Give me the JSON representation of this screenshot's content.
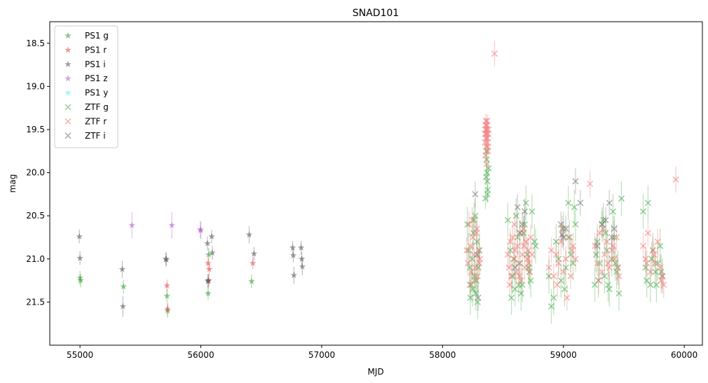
{
  "chart_data": {
    "type": "scatter",
    "title": "SNAD101",
    "xlabel": "MJD",
    "ylabel": "mag",
    "xlim": [
      54750,
      60150
    ],
    "ylim": [
      22.0,
      18.25
    ],
    "y_inverted": true,
    "xticks": [
      55000,
      56000,
      57000,
      58000,
      59000,
      60000
    ],
    "yticks": [
      18.5,
      19.0,
      19.5,
      20.0,
      20.5,
      21.0,
      21.5
    ],
    "ytick_labels": [
      "18.5",
      "19.0",
      "19.5",
      "20.0",
      "20.5",
      "21.0",
      "21.5"
    ],
    "grid": false,
    "legend_position": "upper-left",
    "series": [
      {
        "name": "PS1 g",
        "marker": "star",
        "color": "#2ca02c",
        "x": [
          55000,
          55005,
          55360,
          55720,
          55725,
          56060,
          56065,
          56420
        ],
        "y": [
          21.22,
          21.25,
          21.32,
          21.43,
          21.6,
          21.4,
          20.95,
          21.26
        ],
        "err": [
          0.08,
          0.08,
          0.08,
          0.08,
          0.08,
          0.08,
          0.08,
          0.08
        ]
      },
      {
        "name": "PS1 r",
        "marker": "star",
        "color": "#e8474a",
        "x": [
          55720,
          55725,
          56060,
          56065,
          56070,
          56430
        ],
        "y": [
          21.31,
          21.58,
          21.05,
          21.25,
          21.12,
          21.05
        ],
        "err": [
          0.07,
          0.07,
          0.07,
          0.07,
          0.07,
          0.07
        ]
      },
      {
        "name": "PS1 i",
        "marker": "star",
        "color": "#555555",
        "x": [
          54995,
          55000,
          55350,
          55355,
          55710,
          55715,
          56055,
          56060,
          56090,
          56095,
          56400,
          56440,
          56760,
          56765,
          56830,
          56835,
          56840,
          56770,
          56060
        ],
        "y": [
          20.74,
          20.99,
          21.12,
          21.55,
          21.0,
          21.01,
          20.82,
          21.26,
          20.74,
          20.93,
          20.72,
          20.94,
          20.87,
          20.96,
          20.87,
          21.0,
          21.09,
          21.19,
          21.25
        ],
        "err": [
          0.08,
          0.08,
          0.1,
          0.12,
          0.08,
          0.08,
          0.08,
          0.08,
          0.08,
          0.08,
          0.1,
          0.08,
          0.08,
          0.08,
          0.08,
          0.08,
          0.1,
          0.1,
          0.08
        ]
      },
      {
        "name": "PS1 z",
        "marker": "star",
        "color": "#b15fc2",
        "x": [
          55430,
          55760,
          55995,
          56000
        ],
        "y": [
          20.61,
          20.61,
          20.66,
          20.67
        ],
        "err": [
          0.15,
          0.15,
          0.1,
          0.1
        ]
      },
      {
        "name": "PS1 y",
        "marker": "star",
        "color": "#5ef2ef",
        "x": [],
        "y": [],
        "err": []
      },
      {
        "name": "ZTF g",
        "marker": "x",
        "color": "#4caf50",
        "x": [
          58205,
          58215,
          58225,
          58235,
          58245,
          58255,
          58265,
          58275,
          58285,
          58295,
          58305,
          58230,
          58250,
          58270,
          58290,
          58260,
          58280,
          58355,
          58360,
          58365,
          58370,
          58375,
          58380,
          58362,
          58372,
          58368,
          58540,
          58560,
          58580,
          58600,
          58620,
          58640,
          58660,
          58680,
          58700,
          58720,
          58740,
          58760,
          58570,
          58610,
          58650,
          58690,
          58730,
          58770,
          58590,
          58630,
          58670,
          58710,
          58880,
          58900,
          58920,
          58940,
          58960,
          58980,
          59000,
          59020,
          59040,
          59060,
          59080,
          59100,
          59010,
          59050,
          59090,
          59260,
          59280,
          59300,
          59320,
          59340,
          59360,
          59380,
          59400,
          59420,
          59440,
          59460,
          59480,
          59290,
          59330,
          59370,
          59410,
          59450,
          59270,
          59350,
          59430,
          59660,
          59680,
          59700,
          59720,
          59740,
          59760,
          59780,
          59800,
          59820,
          59690,
          59730,
          59770,
          59810
        ],
        "y": [
          20.6,
          20.9,
          21.1,
          21.3,
          21.0,
          20.7,
          21.2,
          21.4,
          20.8,
          21.1,
          20.9,
          21.45,
          21.35,
          20.5,
          21.5,
          20.55,
          21.25,
          20.3,
          20.05,
          19.85,
          20.1,
          20.2,
          19.95,
          19.75,
          20.25,
          20.0,
          20.55,
          20.9,
          21.2,
          21.35,
          20.75,
          21.05,
          21.3,
          20.6,
          20.95,
          21.15,
          20.45,
          20.8,
          21.45,
          20.5,
          21.4,
          20.35,
          21.25,
          20.85,
          21.0,
          21.3,
          20.7,
          21.1,
          21.2,
          21.55,
          21.45,
          20.8,
          21.0,
          21.25,
          20.65,
          21.1,
          20.35,
          20.95,
          21.05,
          20.6,
          21.35,
          20.75,
          20.4,
          21.3,
          20.8,
          21.05,
          20.6,
          21.2,
          20.9,
          21.35,
          21.0,
          20.75,
          21.15,
          21.4,
          20.3,
          21.25,
          20.55,
          21.3,
          20.45,
          21.1,
          20.95,
          20.7,
          21.05,
          20.45,
          21.1,
          20.35,
          21.3,
          20.9,
          21.15,
          21.05,
          20.85,
          21.2,
          21.25,
          21.0,
          21.3,
          21.15
        ],
        "err": [
          0.2,
          0.2,
          0.2,
          0.2,
          0.2,
          0.2,
          0.2,
          0.2,
          0.2,
          0.2,
          0.2,
          0.2,
          0.2,
          0.2,
          0.2,
          0.2,
          0.2,
          0.12,
          0.1,
          0.1,
          0.1,
          0.1,
          0.1,
          0.1,
          0.1,
          0.1,
          0.2,
          0.2,
          0.2,
          0.2,
          0.2,
          0.2,
          0.2,
          0.2,
          0.2,
          0.2,
          0.2,
          0.2,
          0.2,
          0.2,
          0.2,
          0.2,
          0.2,
          0.2,
          0.2,
          0.2,
          0.2,
          0.2,
          0.2,
          0.2,
          0.2,
          0.2,
          0.2,
          0.2,
          0.2,
          0.2,
          0.2,
          0.2,
          0.2,
          0.2,
          0.2,
          0.2,
          0.2,
          0.2,
          0.2,
          0.2,
          0.2,
          0.2,
          0.2,
          0.2,
          0.2,
          0.2,
          0.2,
          0.2,
          0.2,
          0.2,
          0.2,
          0.2,
          0.2,
          0.2,
          0.2,
          0.2,
          0.2,
          0.2,
          0.2,
          0.2,
          0.2,
          0.2,
          0.2,
          0.2,
          0.2,
          0.2,
          0.2,
          0.2,
          0.2,
          0.2
        ]
      },
      {
        "name": "ZTF r",
        "marker": "x",
        "color": "#f47c7c",
        "x": [
          58200,
          58210,
          58220,
          58230,
          58240,
          58250,
          58260,
          58270,
          58280,
          58290,
          58300,
          58310,
          58225,
          58245,
          58265,
          58285,
          58305,
          58350,
          58352,
          58354,
          58356,
          58358,
          58360,
          58362,
          58364,
          58366,
          58368,
          58370,
          58372,
          58374,
          58376,
          58378,
          58380,
          58355,
          58365,
          58375,
          58430,
          58540,
          58550,
          58560,
          58570,
          58580,
          58590,
          58600,
          58610,
          58620,
          58630,
          58640,
          58650,
          58660,
          58670,
          58680,
          58690,
          58700,
          58710,
          58720,
          58730,
          58740,
          58555,
          58595,
          58635,
          58675,
          58715,
          58880,
          58900,
          58920,
          58940,
          58960,
          58980,
          59000,
          59020,
          59040,
          59060,
          59080,
          59100,
          58950,
          58990,
          59030,
          59070,
          59220,
          59260,
          59280,
          59300,
          59320,
          59340,
          59360,
          59380,
          59400,
          59420,
          59440,
          59460,
          59290,
          59330,
          59370,
          59410,
          59450,
          59660,
          59680,
          59700,
          59720,
          59740,
          59760,
          59780,
          59800,
          59820,
          59830,
          59690,
          59750,
          59810,
          59930
        ],
        "y": [
          20.9,
          21.05,
          20.6,
          20.85,
          21.15,
          20.75,
          20.95,
          21.1,
          20.7,
          21.2,
          20.9,
          21.0,
          21.3,
          20.55,
          21.25,
          20.65,
          21.05,
          19.65,
          19.55,
          19.5,
          19.45,
          19.4,
          19.6,
          19.7,
          19.55,
          19.5,
          19.45,
          19.4,
          19.6,
          19.65,
          19.75,
          19.55,
          19.5,
          19.8,
          19.9,
          19.7,
          18.62,
          20.95,
          21.1,
          20.8,
          21.2,
          20.75,
          21.0,
          20.9,
          21.15,
          20.85,
          21.05,
          20.7,
          21.25,
          20.95,
          20.65,
          21.1,
          20.8,
          21.0,
          20.9,
          21.15,
          20.75,
          20.95,
          21.3,
          20.6,
          21.2,
          20.85,
          21.05,
          21.1,
          20.9,
          21.2,
          20.95,
          21.05,
          20.8,
          21.15,
          21.0,
          20.75,
          21.2,
          20.85,
          21.0,
          21.3,
          20.65,
          21.45,
          20.9,
          20.13,
          20.85,
          21.05,
          20.7,
          21.15,
          20.95,
          20.8,
          21.1,
          20.9,
          21.0,
          20.75,
          21.2,
          21.25,
          20.65,
          21.05,
          20.85,
          21.1,
          20.85,
          21.0,
          20.7,
          21.15,
          20.9,
          21.05,
          20.8,
          21.1,
          21.2,
          21.3,
          21.05,
          20.95,
          21.25,
          20.08
        ],
        "err": [
          0.15,
          0.15,
          0.15,
          0.15,
          0.15,
          0.15,
          0.15,
          0.15,
          0.15,
          0.15,
          0.15,
          0.15,
          0.15,
          0.15,
          0.15,
          0.15,
          0.15,
          0.08,
          0.08,
          0.08,
          0.08,
          0.08,
          0.08,
          0.08,
          0.08,
          0.08,
          0.08,
          0.08,
          0.08,
          0.08,
          0.08,
          0.08,
          0.08,
          0.08,
          0.08,
          0.08,
          0.15,
          0.15,
          0.15,
          0.15,
          0.15,
          0.15,
          0.15,
          0.15,
          0.15,
          0.15,
          0.15,
          0.15,
          0.15,
          0.15,
          0.15,
          0.15,
          0.15,
          0.15,
          0.15,
          0.15,
          0.15,
          0.15,
          0.15,
          0.15,
          0.15,
          0.15,
          0.15,
          0.15,
          0.15,
          0.15,
          0.15,
          0.15,
          0.15,
          0.15,
          0.15,
          0.15,
          0.15,
          0.15,
          0.15,
          0.15,
          0.15,
          0.15,
          0.15,
          0.15,
          0.15,
          0.15,
          0.15,
          0.15,
          0.15,
          0.15,
          0.15,
          0.15,
          0.15,
          0.15,
          0.15,
          0.15,
          0.15,
          0.15,
          0.15,
          0.15,
          0.15,
          0.15,
          0.15,
          0.15,
          0.15,
          0.15,
          0.15,
          0.15,
          0.15,
          0.15,
          0.15,
          0.15,
          0.15,
          0.15
        ]
      },
      {
        "name": "ZTF i",
        "marker": "x",
        "color": "#777777",
        "x": [
          58270,
          58285,
          58295,
          58620,
          58640,
          58660,
          58680,
          58600,
          58980,
          59000,
          59020,
          58990,
          59100,
          59140,
          59280,
          59320,
          59380,
          59400,
          59350,
          59420
        ],
        "y": [
          20.25,
          20.95,
          21.45,
          20.4,
          20.7,
          20.6,
          20.45,
          21.1,
          20.6,
          20.75,
          20.65,
          20.72,
          20.1,
          20.35,
          20.85,
          20.6,
          20.35,
          20.75,
          20.55,
          20.65
        ],
        "err": [
          0.15,
          0.15,
          0.15,
          0.15,
          0.15,
          0.15,
          0.15,
          0.15,
          0.15,
          0.15,
          0.15,
          0.15,
          0.15,
          0.15,
          0.15,
          0.15,
          0.15,
          0.15,
          0.15,
          0.15
        ]
      }
    ]
  }
}
